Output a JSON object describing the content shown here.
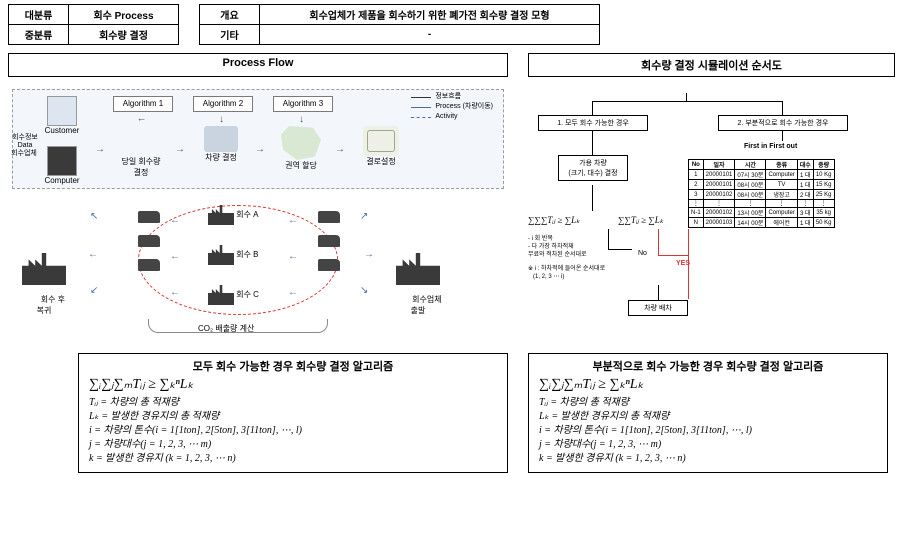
{
  "header": {
    "r1c1": "대분류",
    "r1c2": "회수 Process",
    "r2c1": "중분류",
    "r2c2": "회수량 결정",
    "r1c3": "개요",
    "r1c4": "회수업체가 제품을 회수하기 위한 폐가전 회수량 결정 모형",
    "r2c3": "기타",
    "r2c4": "-"
  },
  "sections": {
    "left": "Process Flow",
    "right": "회수량 결정 시뮬레이션 순서도"
  },
  "pf": {
    "customer": "Customer",
    "computer": "Computer",
    "data_left": "회수정보\nData",
    "biz_left": "회수업체",
    "alg1": "Algorithm 1",
    "alg2": "Algorithm 2",
    "alg3": "Algorithm 3",
    "step1": "당일 회수량\n결정",
    "step2": "차량 결정",
    "step3": "권역 할당",
    "step4": "결로설정",
    "legend1": "정보흐름",
    "legend2": "Process (차량이동)",
    "legend3": "Activity",
    "fac_left": "회수 후\n복귀",
    "fac_right": "회수업체\n출발",
    "spotA": "회수 A",
    "spotB": "회수 B",
    "spotC": "회수 C",
    "co2": "CO₂ 배출량 계산"
  },
  "fc": {
    "case1": "1. 모두 회수 가능한 경우",
    "case2": "2. 부분적으로 회수 가능한 경우",
    "fifo": "First in First out",
    "carSpec": "가용 차량\n(크기, 대수) 결정",
    "dispatch": "차량 배차",
    "no": "No",
    "yes": "YES",
    "math1": "∑∑∑Tᵢⱼ ≥ ∑Lₖ",
    "math2": "∑∑Tᵢⱼ ≥ ∑Lₖ",
    "note1": "- i 회 반복\n- 다 가장 하차적재\n무료와 적차된 순서대로",
    "note2": "※ i : 하차적에 들어온 순서대로\n   (1, 2, 3 ⋯ i)",
    "tbl": {
      "head": [
        "No",
        "일자",
        "시간",
        "종류",
        "대수",
        "중량"
      ],
      "rows": [
        [
          "1",
          "20000101",
          "07시 30분",
          "Computer",
          "1 대",
          "10 Kg"
        ],
        [
          "2",
          "20000101",
          "08시 00분",
          "TV",
          "1 대",
          "15 Kg"
        ],
        [
          "3",
          "20000102",
          "08시 00분",
          "냉장고",
          "2 대",
          "25 Kg"
        ],
        [
          "⋮",
          "⋮",
          "⋮",
          "⋮",
          "⋮",
          "⋮"
        ],
        [
          "N-1",
          "20000102",
          "13시 00분",
          "Computer",
          "3 대",
          "35 kg"
        ],
        [
          "N",
          "20000103",
          "14시 00분",
          "에어컨",
          "1 대",
          "50 Kg"
        ]
      ]
    }
  },
  "algo": {
    "title1": "모두 회수 가능한 경우 회수량 결정 알고리즘",
    "title2": "부분적으로 회수 가능한 경우 회수량 결정 알고리즘",
    "sum": "∑ᵢ∑ⱼ∑ₘTᵢⱼ ≥ ∑ₖⁿLₖ",
    "d1": "Tᵢⱼ = 차량의 총 적재량",
    "d2": "Lₖ = 발생한 경유지의 총 적재량",
    "d3": "i = 차량의 톤수(i = 1[1ton], 2[5ton], 3[11ton], ⋯, l)",
    "d4": "j = 차량대수(j = 1, 2, 3, ⋯ m)",
    "d5": "k = 발생한 경유지 (k = 1, 2, 3, ⋯ n)"
  },
  "colors": {
    "border": "#000000",
    "dash": "#9b9b9b",
    "bg_top": "#f3f7fb",
    "red": "#d33333",
    "blue": "#4a6fa5"
  }
}
